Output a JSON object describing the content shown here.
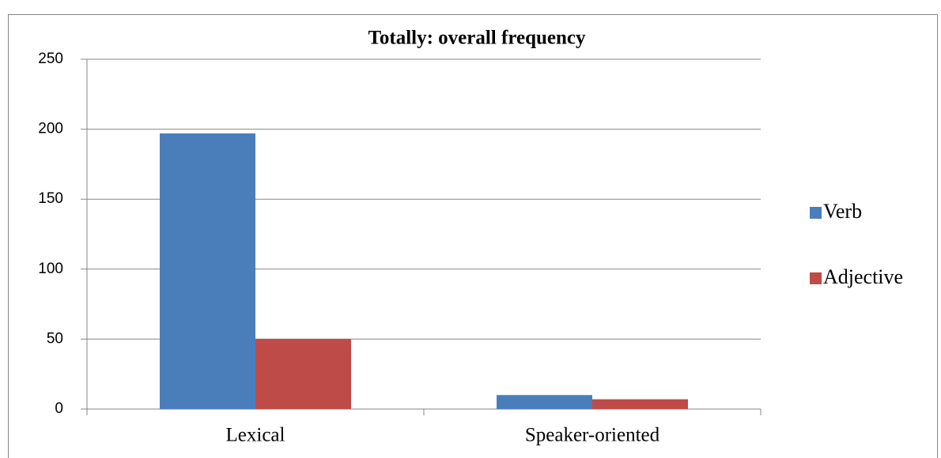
{
  "chart_data": {
    "type": "bar",
    "title": "Totally: overall frequency",
    "categories": [
      "Lexical",
      "Speaker-oriented"
    ],
    "series": [
      {
        "name": "Verb",
        "color": "#4a7ebb",
        "values": [
          197,
          10
        ]
      },
      {
        "name": "Adjective",
        "color": "#be4b48",
        "values": [
          50,
          7
        ]
      }
    ],
    "ylim": [
      0,
      250
    ],
    "yticks": [
      0,
      50,
      100,
      150,
      200,
      250
    ],
    "grid": true,
    "legend": "right"
  }
}
